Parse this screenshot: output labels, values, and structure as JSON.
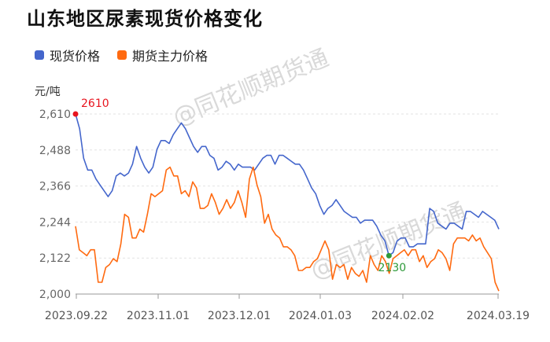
{
  "title": "山东地区尿素现货价格变化",
  "legend": [
    {
      "name": "现货价格",
      "color": "#4466cc"
    },
    {
      "name": "期货主力价格",
      "color": "#ff6a10"
    }
  ],
  "watermark": "@同花顺期货通",
  "chart_data": {
    "type": "line",
    "ylabel": "元/吨",
    "ylim": [
      2000,
      2610
    ],
    "yticks": [
      "2,610",
      "2,488",
      "2,366",
      "2,244",
      "2,122",
      "2,000"
    ],
    "ytick_values": [
      2610,
      2488,
      2366,
      2244,
      2122,
      2000
    ],
    "xtick_labels": [
      "2023.09.22",
      "2023.11.01",
      "2023.12.01",
      "2024.01.03",
      "2024.02.02",
      "2024.03.19"
    ],
    "annotations": [
      {
        "label": "2610",
        "series": "现货价格",
        "index": 0,
        "color": "#e8141e"
      },
      {
        "label": "2130",
        "series": "现货价格",
        "index": 77,
        "color": "#2e9a3a"
      }
    ],
    "series": [
      {
        "name": "现货价格",
        "color": "#4466cc",
        "values": [
          2610,
          2560,
          2460,
          2420,
          2420,
          2390,
          2370,
          2350,
          2330,
          2350,
          2400,
          2410,
          2400,
          2410,
          2440,
          2500,
          2460,
          2430,
          2410,
          2430,
          2490,
          2520,
          2520,
          2510,
          2540,
          2560,
          2580,
          2560,
          2530,
          2500,
          2480,
          2500,
          2500,
          2470,
          2460,
          2420,
          2430,
          2450,
          2440,
          2420,
          2440,
          2430,
          2430,
          2430,
          2420,
          2440,
          2460,
          2470,
          2470,
          2440,
          2470,
          2470,
          2460,
          2450,
          2440,
          2440,
          2420,
          2390,
          2360,
          2340,
          2300,
          2270,
          2290,
          2300,
          2320,
          2300,
          2280,
          2270,
          2260,
          2260,
          2240,
          2250,
          2250,
          2250,
          2230,
          2200,
          2180,
          2130,
          2140,
          2180,
          2190,
          2190,
          2160,
          2160,
          2170,
          2170,
          2170,
          2290,
          2280,
          2240,
          2230,
          2220,
          2240,
          2240,
          2230,
          2220,
          2280,
          2280,
          2270,
          2260,
          2280,
          2270,
          2260,
          2250,
          2220
        ]
      },
      {
        "name": "期货主力价格",
        "color": "#ff6a10",
        "values": [
          2230,
          2150,
          2140,
          2130,
          2150,
          2150,
          2040,
          2040,
          2090,
          2100,
          2120,
          2110,
          2170,
          2270,
          2260,
          2190,
          2190,
          2220,
          2210,
          2270,
          2340,
          2330,
          2340,
          2350,
          2420,
          2430,
          2400,
          2400,
          2340,
          2350,
          2330,
          2380,
          2360,
          2290,
          2290,
          2300,
          2340,
          2310,
          2270,
          2290,
          2320,
          2290,
          2310,
          2350,
          2310,
          2260,
          2390,
          2430,
          2370,
          2330,
          2240,
          2270,
          2220,
          2200,
          2190,
          2160,
          2160,
          2150,
          2130,
          2080,
          2080,
          2090,
          2090,
          2110,
          2120,
          2150,
          2180,
          2150,
          2050,
          2100,
          2090,
          2100,
          2050,
          2090,
          2070,
          2060,
          2080,
          2040,
          2130,
          2100,
          2080,
          2130,
          2110,
          2070,
          2120,
          2130,
          2140,
          2150,
          2130,
          2150,
          2150,
          2110,
          2130,
          2090,
          2110,
          2120,
          2150,
          2140,
          2120,
          2080,
          2170,
          2190,
          2190,
          2190,
          2180,
          2200,
          2180,
          2190,
          2160,
          2140,
          2120,
          2040,
          2010
        ]
      }
    ]
  }
}
